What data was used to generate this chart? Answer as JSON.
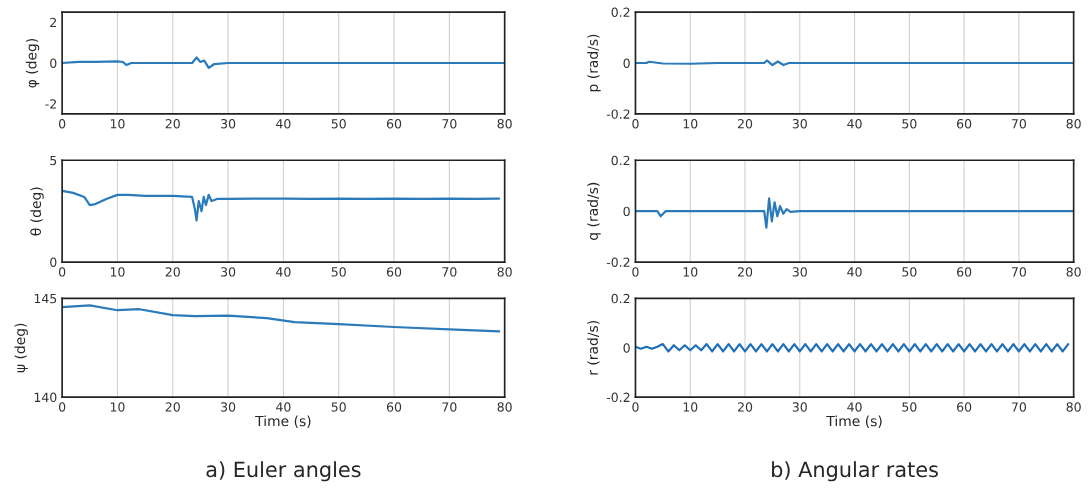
{
  "chart_data": [
    {
      "type": "line",
      "ylabel": "φ (deg)",
      "xlim": [
        0,
        80
      ],
      "xticks": [
        0,
        10,
        20,
        30,
        40,
        50,
        60,
        70,
        80
      ],
      "ylim": [
        -2.5,
        2.5
      ],
      "yticks": [
        -2,
        0,
        2
      ],
      "grid": "x",
      "series": [
        {
          "color": "#2b7bba",
          "x": [
            0,
            3,
            6,
            10,
            11,
            11.6,
            12.5,
            15,
            20,
            23.5,
            24.3,
            25,
            25.7,
            26.5,
            27.5,
            30,
            40,
            50,
            60,
            70,
            80
          ],
          "values": [
            0,
            0.05,
            0.05,
            0.08,
            0.05,
            -0.1,
            0,
            0,
            0,
            0,
            0.27,
            0.05,
            0.12,
            -0.24,
            -0.05,
            0,
            0,
            0,
            0,
            0,
            0
          ]
        }
      ]
    },
    {
      "type": "line",
      "ylabel": "θ (deg)",
      "xlim": [
        0,
        80
      ],
      "xticks": [
        0,
        10,
        20,
        30,
        40,
        50,
        60,
        70,
        80
      ],
      "ylim": [
        0,
        5
      ],
      "yticks": [
        0,
        5
      ],
      "grid": "x",
      "series": [
        {
          "color": "#2b7bba",
          "x": [
            0,
            2,
            4,
            5,
            6,
            8,
            10,
            12,
            15,
            20,
            23.5,
            24,
            24.3,
            24.7,
            25.2,
            25.6,
            26,
            26.5,
            27,
            28,
            30,
            35,
            40,
            45,
            50,
            55,
            60,
            65,
            70,
            75,
            79
          ],
          "values": [
            3.5,
            3.4,
            3.2,
            2.8,
            2.85,
            3.1,
            3.3,
            3.3,
            3.25,
            3.25,
            3.2,
            2.6,
            2.05,
            3.0,
            2.5,
            3.2,
            2.8,
            3.3,
            3.0,
            3.1,
            3.1,
            3.12,
            3.12,
            3.1,
            3.12,
            3.1,
            3.12,
            3.1,
            3.12,
            3.1,
            3.12
          ]
        }
      ]
    },
    {
      "type": "line",
      "ylabel": "ψ (deg)",
      "xlabel": "Time (s)",
      "xlim": [
        0,
        80
      ],
      "xticks": [
        0,
        10,
        20,
        30,
        40,
        50,
        60,
        70,
        80
      ],
      "ylim": [
        140,
        145
      ],
      "yticks": [
        140,
        145
      ],
      "grid": "x",
      "annotations": [
        "a) Euler angles"
      ],
      "series": [
        {
          "color": "#2b7bba",
          "x": [
            0,
            5,
            10,
            14,
            20,
            24,
            30,
            37,
            42,
            50,
            60,
            70,
            79
          ],
          "values": [
            144.56,
            144.65,
            144.4,
            144.45,
            144.15,
            144.1,
            144.13,
            144.0,
            143.8,
            143.7,
            143.55,
            143.43,
            143.33
          ]
        }
      ]
    },
    {
      "type": "line",
      "ylabel": "p (rad/s)",
      "xlim": [
        0,
        80
      ],
      "xticks": [
        0,
        10,
        20,
        30,
        40,
        50,
        60,
        70,
        80
      ],
      "ylim": [
        -0.2,
        0.2
      ],
      "yticks": [
        -0.2,
        0,
        0.2
      ],
      "grid": "x",
      "series": [
        {
          "color": "#2b7bba",
          "x": [
            0,
            2,
            2.5,
            5,
            10,
            15,
            20,
            23.5,
            24,
            25,
            26,
            27,
            28,
            40,
            60,
            80
          ],
          "values": [
            0,
            0,
            0.005,
            -0.002,
            -0.003,
            0,
            0,
            0,
            0.01,
            -0.008,
            0.006,
            -0.008,
            0,
            0,
            0,
            0
          ]
        }
      ]
    },
    {
      "type": "line",
      "ylabel": "q (rad/s)",
      "xlim": [
        0,
        80
      ],
      "xticks": [
        0,
        10,
        20,
        30,
        40,
        50,
        60,
        70,
        80
      ],
      "ylim": [
        -0.2,
        0.2
      ],
      "yticks": [
        -0.2,
        0,
        0.2
      ],
      "grid": "x",
      "series": [
        {
          "color": "#2b7bba",
          "x": [
            0,
            4,
            4.6,
            5.5,
            10,
            20,
            23.5,
            23.9,
            24.4,
            24.9,
            25.4,
            25.9,
            26.4,
            27,
            27.6,
            28.3,
            30,
            40,
            50,
            60,
            70,
            80
          ],
          "values": [
            0,
            0,
            -0.02,
            0,
            0,
            0,
            0,
            -0.065,
            0.05,
            -0.04,
            0.035,
            -0.02,
            0.02,
            -0.01,
            0.008,
            -0.003,
            0,
            0,
            0,
            0,
            0,
            0
          ]
        }
      ]
    },
    {
      "type": "line",
      "ylabel": "r (rad/s)",
      "xlabel": "Time (s)",
      "xlim": [
        0,
        80
      ],
      "xticks": [
        0,
        10,
        20,
        30,
        40,
        50,
        60,
        70,
        80
      ],
      "ylim": [
        -0.2,
        0.2
      ],
      "yticks": [
        -0.2,
        0,
        0.2
      ],
      "grid": "x",
      "annotations": [
        "b) Angular rates"
      ],
      "series": [
        {
          "color": "#1f6fb8",
          "x": [
            0,
            1,
            2,
            3,
            4,
            5,
            6,
            7,
            8,
            9,
            10,
            11,
            12,
            13,
            14,
            15,
            16,
            17,
            18,
            19,
            20,
            21,
            22,
            23,
            24,
            25,
            26,
            27,
            28,
            29,
            30,
            31,
            32,
            33,
            34,
            35,
            36,
            37,
            38,
            39,
            40,
            41,
            42,
            43,
            44,
            45,
            46,
            47,
            48,
            49,
            50,
            51,
            52,
            53,
            54,
            55,
            56,
            57,
            58,
            59,
            60,
            61,
            62,
            63,
            64,
            65,
            66,
            67,
            68,
            69,
            70,
            71,
            72,
            73,
            74,
            75,
            76,
            77,
            78,
            79
          ],
          "values": [
            0.004,
            -0.004,
            0.004,
            -0.004,
            0.004,
            0.015,
            -0.015,
            0.01,
            -0.01,
            0.01,
            -0.01,
            0.01,
            -0.01,
            0.015,
            -0.015,
            0.015,
            -0.015,
            0.015,
            -0.015,
            0.015,
            -0.015,
            0.015,
            -0.015,
            0.015,
            -0.015,
            0.015,
            -0.015,
            0.015,
            -0.015,
            0.015,
            -0.015,
            0.015,
            -0.015,
            0.015,
            -0.015,
            0.015,
            -0.015,
            0.015,
            -0.015,
            0.015,
            -0.015,
            0.015,
            -0.015,
            0.015,
            -0.015,
            0.015,
            -0.015,
            0.015,
            -0.015,
            0.015,
            -0.015,
            0.015,
            -0.015,
            0.015,
            -0.015,
            0.015,
            -0.015,
            0.015,
            -0.015,
            0.015,
            -0.015,
            0.015,
            -0.015,
            0.015,
            -0.015,
            0.015,
            -0.015,
            0.015,
            -0.015,
            0.015,
            -0.015,
            0.015,
            -0.015,
            0.015,
            -0.015,
            0.015,
            -0.015,
            0.015,
            -0.015,
            0.015
          ]
        }
      ]
    }
  ]
}
